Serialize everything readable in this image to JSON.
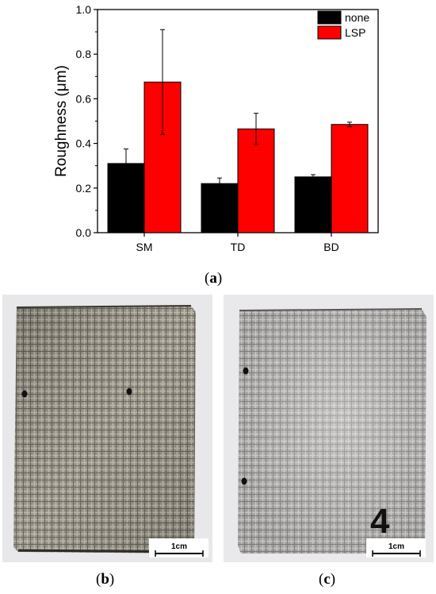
{
  "chart_data": {
    "type": "bar",
    "categories": [
      "SM",
      "TD",
      "BD"
    ],
    "series": [
      {
        "name": "none",
        "color": "#000000",
        "values": [
          0.31,
          0.22,
          0.25
        ],
        "errors": [
          0.065,
          0.025,
          0.01
        ]
      },
      {
        "name": "LSP",
        "color": "#ff0000",
        "values": [
          0.675,
          0.465,
          0.485
        ],
        "errors": [
          0.235,
          0.07,
          0.01
        ]
      }
    ],
    "ylabel": "Roughness (μm)",
    "ylim": [
      0.0,
      1.0
    ],
    "yticks": [
      "0.0",
      "0.2",
      "0.4",
      "0.6",
      "0.8",
      "1.0"
    ],
    "legend": "top-right",
    "grid": false
  },
  "captions": {
    "a": {
      "open": "(",
      "letter": "a",
      "close": ")"
    },
    "b": {
      "open": "(",
      "letter": "b",
      "close": ")"
    },
    "c": {
      "open": "(",
      "letter": "c",
      "close": ")"
    }
  },
  "photos": {
    "b": {
      "scale_label": "1cm",
      "marker_digit": ""
    },
    "c": {
      "scale_label": "1cm",
      "marker_digit": "4"
    }
  },
  "colors": {
    "none": "#000000",
    "lsp": "#ff0000",
    "plate": "#8f8a7e",
    "backdrop": "#e9e9eb"
  }
}
